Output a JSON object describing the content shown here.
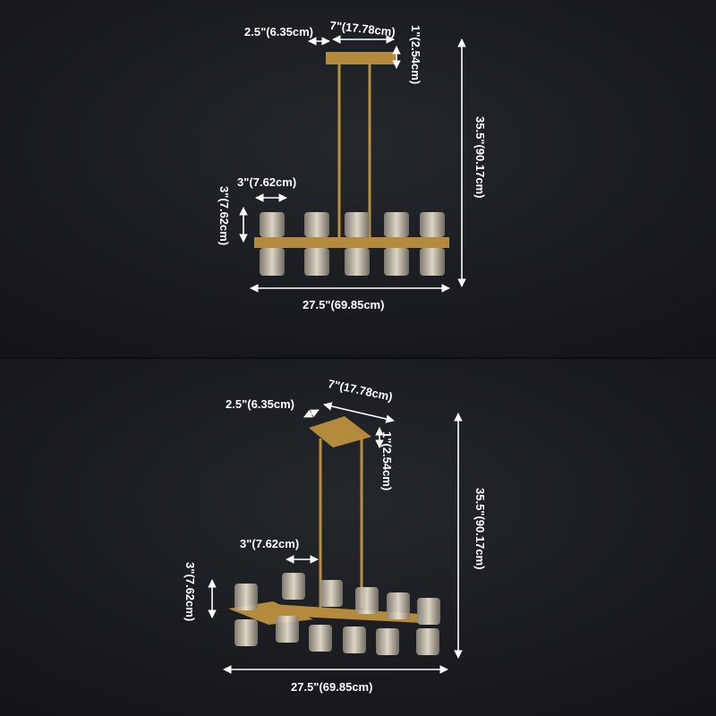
{
  "colors": {
    "background": "#17191d",
    "brass": "#b48a3c",
    "glass": "#d8d2c4",
    "annotation": "#ffffff"
  },
  "top_view": {
    "canopy_width": "2.5\"(6.35cm)",
    "canopy_length": "7\"(17.78cm)",
    "canopy_height": "1\"(2.54cm)",
    "overall_height": "35.5\"(90.17cm)",
    "shade_width": "3\"(7.62cm)",
    "shade_height": "3\"(7.62cm)",
    "overall_length": "27.5\"(69.85cm)"
  },
  "bottom_view": {
    "canopy_width": "2.5\"(6.35cm)",
    "canopy_length": "7\"(17.78cm)",
    "canopy_height": "1\"(2.54cm)",
    "overall_height": "35.5\"(90.17cm)",
    "shade_width": "3\"(7.62cm)",
    "shade_height": "3\"(7.62cm)",
    "overall_length": "27.5\"(69.85cm)"
  }
}
